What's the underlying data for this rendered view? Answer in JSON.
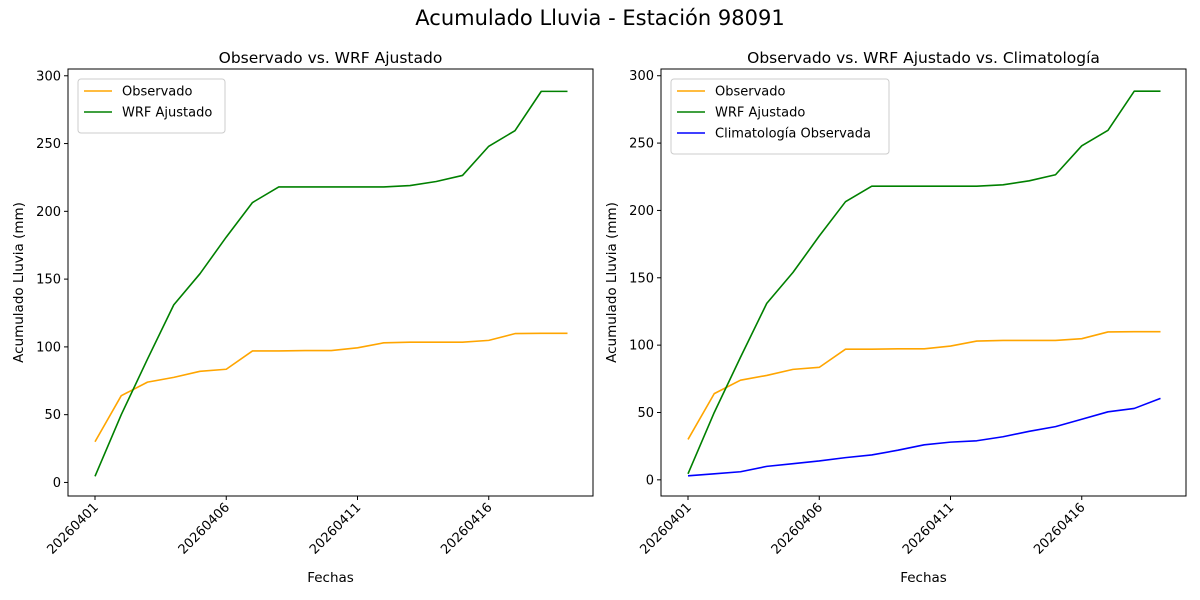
{
  "suptitle": "Acumulado Lluvia - Estación 98091",
  "chart_data": [
    {
      "type": "line",
      "title": "Observado vs. WRF Ajustado",
      "xlabel": "Fechas",
      "ylabel": "Acumulado Lluvia (mm)",
      "x": [
        "20260401",
        "20260402",
        "20260403",
        "20260404",
        "20260405",
        "20260406",
        "20260407",
        "20260408",
        "20260409",
        "20260410",
        "20260411",
        "20260412",
        "20260413",
        "20260414",
        "20260415",
        "20260416",
        "20260417",
        "20260418",
        "20260419"
      ],
      "xticks": [
        "20260401",
        "20260406",
        "20260411",
        "20260416"
      ],
      "yticks": [
        0,
        50,
        100,
        150,
        200,
        250,
        300
      ],
      "ylim": [
        -10,
        305
      ],
      "legend": "upper-left",
      "grid": false,
      "series": [
        {
          "name": "Observado",
          "color": "#ffa500",
          "values": [
            30,
            64,
            74,
            77.5,
            82,
            83.5,
            97,
            97,
            97.3,
            97.3,
            99.3,
            103,
            103.5,
            103.5,
            103.5,
            104.8,
            109.8,
            110,
            110
          ]
        },
        {
          "name": "WRF Ajustado",
          "color": "#008000",
          "values": [
            4.5,
            50,
            91,
            131,
            154,
            181,
            206.5,
            218,
            218,
            218,
            218,
            218,
            219,
            222,
            226.5,
            248,
            259.5,
            288.5,
            288.5
          ]
        }
      ]
    },
    {
      "type": "line",
      "title": "Observado vs. WRF Ajustado vs. Climatología",
      "xlabel": "Fechas",
      "ylabel": "Acumulado Lluvia (mm)",
      "x": [
        "20260401",
        "20260402",
        "20260403",
        "20260404",
        "20260405",
        "20260406",
        "20260407",
        "20260408",
        "20260409",
        "20260410",
        "20260411",
        "20260412",
        "20260413",
        "20260414",
        "20260415",
        "20260416",
        "20260417",
        "20260418",
        "20260419"
      ],
      "xticks": [
        "20260401",
        "20260406",
        "20260411",
        "20260416"
      ],
      "yticks": [
        0,
        50,
        100,
        150,
        200,
        250,
        300
      ],
      "ylim": [
        -12,
        305
      ],
      "legend": "upper-left",
      "grid": false,
      "series": [
        {
          "name": "Observado",
          "color": "#ffa500",
          "values": [
            30,
            64,
            74,
            77.5,
            82,
            83.5,
            97,
            97,
            97.3,
            97.3,
            99.3,
            103,
            103.5,
            103.5,
            103.5,
            104.8,
            109.8,
            110,
            110
          ]
        },
        {
          "name": "WRF Ajustado",
          "color": "#008000",
          "values": [
            4.5,
            50,
            91,
            131,
            154,
            181,
            206.5,
            218,
            218,
            218,
            218,
            218,
            219,
            222,
            226.5,
            248,
            259.5,
            288.5,
            288.5
          ]
        },
        {
          "name": "Climatología Observada",
          "color": "#0000ff",
          "values": [
            3,
            4.5,
            6,
            10,
            12,
            14,
            16.5,
            18.5,
            22,
            26,
            28,
            29,
            32,
            36,
            39.5,
            45,
            50.5,
            53,
            60.5
          ]
        }
      ]
    }
  ]
}
